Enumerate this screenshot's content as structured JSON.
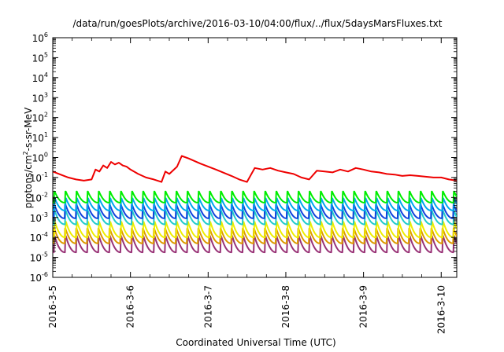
{
  "chart_data": {
    "type": "line",
    "title": "/data/run/goesPlots/archive/2016-03-10/04:00/flux/../flux/5daysMarsFluxes.txt",
    "xlabel": "Coordinated Universal Time (UTC)",
    "ylabel": {
      "prefix": "protons/cm",
      "sup": "2",
      "suffix": "-s-sr-MeV"
    },
    "y_scale": "log",
    "ylim_exponent": [
      -6,
      6
    ],
    "y_ticks": [
      {
        "base": "10",
        "exp": "6"
      },
      {
        "base": "10",
        "exp": "5"
      },
      {
        "base": "10",
        "exp": "4"
      },
      {
        "base": "10",
        "exp": "3"
      },
      {
        "base": "10",
        "exp": "2"
      },
      {
        "base": "10",
        "exp": "1"
      },
      {
        "base": "10",
        "exp": "0"
      },
      {
        "base": "10",
        "exp": "-1"
      },
      {
        "base": "10",
        "exp": "-2"
      },
      {
        "base": "10",
        "exp": "-3"
      },
      {
        "base": "10",
        "exp": "-4"
      },
      {
        "base": "10",
        "exp": "-5"
      },
      {
        "base": "10",
        "exp": "-6"
      }
    ],
    "x_ticks": [
      "2016-3-5",
      "2016-3-6",
      "2016-3-7",
      "2016-3-8",
      "2016-3-9",
      "2016-3-10"
    ],
    "xlim_days": [
      0,
      5.2
    ],
    "grid": false,
    "legend": "none",
    "series": [
      {
        "color": "#ee0000",
        "x": [
          0,
          0.1,
          0.2,
          0.3,
          0.4,
          0.5,
          0.55,
          0.6,
          0.65,
          0.7,
          0.75,
          0.8,
          0.85,
          0.9,
          0.95,
          1.0,
          1.1,
          1.2,
          1.3,
          1.4,
          1.45,
          1.5,
          1.6,
          1.66,
          1.75,
          1.9,
          2.1,
          2.3,
          2.4,
          2.5,
          2.6,
          2.7,
          2.8,
          2.9,
          3.0,
          3.1,
          3.2,
          3.3,
          3.4,
          3.5,
          3.6,
          3.7,
          3.8,
          3.9,
          4.0,
          4.1,
          4.2,
          4.3,
          4.4,
          4.5,
          4.6,
          4.7,
          4.8,
          4.9,
          5.0,
          5.1,
          5.2
        ],
        "values": [
          0.2,
          0.14,
          0.1,
          0.08,
          0.07,
          0.08,
          0.25,
          0.2,
          0.4,
          0.3,
          0.6,
          0.45,
          0.55,
          0.4,
          0.35,
          0.25,
          0.15,
          0.1,
          0.08,
          0.06,
          0.2,
          0.15,
          0.35,
          1.2,
          0.9,
          0.5,
          0.25,
          0.12,
          0.08,
          0.06,
          0.3,
          0.25,
          0.3,
          0.22,
          0.18,
          0.15,
          0.1,
          0.08,
          0.22,
          0.2,
          0.18,
          0.25,
          0.2,
          0.3,
          0.25,
          0.2,
          0.18,
          0.15,
          0.14,
          0.12,
          0.13,
          0.12,
          0.11,
          0.1,
          0.1,
          0.08,
          0.07
        ]
      },
      {
        "color": "#00ee00",
        "sawtooth": true,
        "peak": 0.02,
        "trough": 0.0055
      },
      {
        "color": "#00aaee",
        "sawtooth": true,
        "peak": 0.009,
        "trough": 0.0022
      },
      {
        "color": "#1144dd",
        "sawtooth": true,
        "peak": 0.0045,
        "trough": 0.0009
      },
      {
        "color": "#22cccc",
        "sawtooth": true,
        "peak": 0.0022,
        "trough": 0.00045
      },
      {
        "color": "#eeee00",
        "sawtooth": true,
        "peak": 0.0006,
        "trough": 0.0001
      },
      {
        "color": "#dd9900",
        "sawtooth": true,
        "peak": 0.00028,
        "trough": 5e-05
      },
      {
        "color": "#993377",
        "sawtooth": true,
        "peak": 0.00012,
        "trough": 1.8e-05
      }
    ]
  }
}
